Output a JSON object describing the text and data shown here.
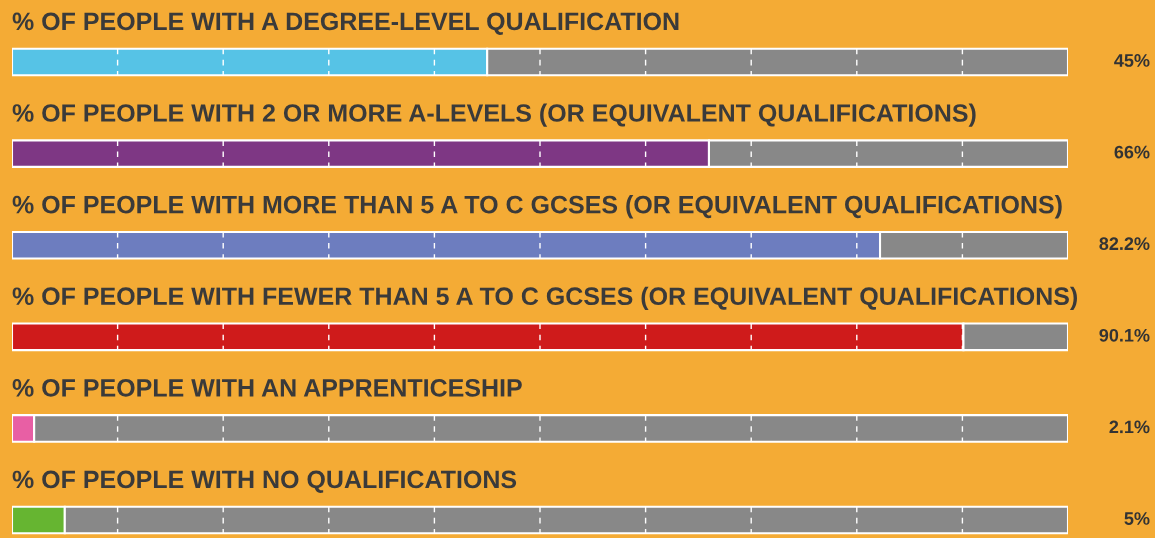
{
  "chart_data": {
    "type": "bar",
    "orientation": "horizontal",
    "stacked": true,
    "categories": [
      "% OF PEOPLE WITH A DEGREE-LEVEL QUALIFICATION",
      "% OF PEOPLE WITH 2 OR MORE A-LEVELS (OR EQUIVALENT QUALIFICATIONS)",
      "% OF PEOPLE WITH MORE THAN 5 A TO C GCSES (OR EQUIVALENT QUALIFICATIONS)",
      "% OF PEOPLE WITH FEWER THAN 5 A TO C GCSES (OR EQUIVALENT QUALIFICATIONS)",
      "% OF PEOPLE WITH AN APPRENTICESHIP",
      "% OF PEOPLE WITH NO QUALIFICATIONS"
    ],
    "series": [
      {
        "colors": [
          "#56c3e6",
          "#7e3784",
          "#6d7dbf",
          "#cf1b1b",
          "#e85fa4",
          "#66b531"
        ],
        "values": [
          45,
          66,
          82.2,
          90.1,
          2.1,
          5
        ],
        "value_labels": [
          "45%",
          "66%",
          "82.2%",
          "90.1%",
          "2.1%",
          "5%"
        ]
      },
      {
        "color": "#888888",
        "values": [
          55,
          34,
          17.8,
          9.9,
          97.9,
          95
        ]
      }
    ],
    "xlim": [
      0,
      100
    ],
    "legend": false
  }
}
